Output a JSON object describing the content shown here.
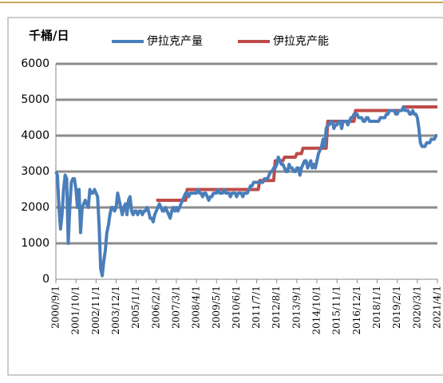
{
  "chart_data": {
    "type": "line",
    "ylabel": "千桶/日",
    "categories": [
      "2000/9/1",
      null,
      null,
      null,
      null,
      null,
      null,
      null,
      null,
      null,
      null,
      null,
      null,
      "2001/10/1",
      null,
      null,
      null,
      null,
      null,
      null,
      null,
      null,
      null,
      null,
      null,
      null,
      "2002/11/1",
      null,
      null,
      null,
      null,
      null,
      null,
      null,
      null,
      null,
      null,
      null,
      null,
      "2003/12/1",
      null,
      null,
      null,
      null,
      null,
      null,
      null,
      null,
      null,
      null,
      null,
      null,
      "2005/1/1",
      null,
      null,
      null,
      null,
      null,
      null,
      null,
      null,
      null,
      null,
      null,
      null,
      "2006/2/1",
      null,
      null,
      null,
      null,
      null,
      null,
      null,
      null,
      null,
      null,
      null,
      null,
      "2007/3/1",
      null,
      null,
      null,
      null,
      null,
      null,
      null,
      null,
      null,
      null,
      null,
      null,
      "2008/4/1",
      null,
      null,
      null,
      null,
      null,
      null,
      null,
      null,
      null,
      null,
      null,
      null,
      "2009/5/1",
      null,
      null,
      null,
      null,
      null,
      null,
      null,
      null,
      null,
      null,
      null,
      null,
      "2010/6/1",
      null,
      null,
      null,
      null,
      null,
      null,
      null,
      null,
      null,
      null,
      null,
      null,
      "2011/7/1",
      null,
      null,
      null,
      null,
      null,
      null,
      null,
      null,
      null,
      null,
      null,
      null,
      "2012/8/1",
      null,
      null,
      null,
      null,
      null,
      null,
      null,
      null,
      null,
      null,
      null,
      null,
      "2013/9/1",
      null,
      null,
      null,
      null,
      null,
      null,
      null,
      null,
      null,
      null,
      null,
      null,
      "2014/10/1",
      null,
      null,
      null,
      null,
      null,
      null,
      null,
      null,
      null,
      null,
      null,
      null,
      "2015/11/1",
      null,
      null,
      null,
      null,
      null,
      null,
      null,
      null,
      null,
      null,
      null,
      null,
      "2016/12/1",
      null,
      null,
      null,
      null,
      null,
      null,
      null,
      null,
      null,
      null,
      null,
      null,
      "2018/1/1",
      null,
      null,
      null,
      null,
      null,
      null,
      null,
      null,
      null,
      null,
      null,
      null,
      "2019/2/1",
      null,
      null,
      null,
      null,
      null,
      null,
      null,
      null,
      null,
      null,
      null,
      null,
      "2020/3/1",
      null,
      null,
      null,
      null,
      null,
      null,
      null,
      null,
      null,
      null,
      null,
      null,
      "2021/4/1"
    ],
    "series": [
      {
        "name": "伊拉克产量",
        "color": "#4a7ebb",
        "values": [
          3000,
          2900,
          2000,
          1400,
          1800,
          2500,
          2900,
          2800,
          1000,
          2000,
          2700,
          2800,
          2800,
          2500,
          2000,
          2500,
          1300,
          2000,
          2100,
          2200,
          2100,
          2000,
          2500,
          2400,
          2400,
          2500,
          2400,
          2300,
          1500,
          300,
          100,
          500,
          800,
          1300,
          1500,
          1800,
          2000,
          2000,
          1900,
          2000,
          2400,
          2200,
          2000,
          1800,
          2000,
          2100,
          1800,
          2200,
          2300,
          1900,
          1800,
          1900,
          1900,
          1800,
          1900,
          1900,
          1800,
          1900,
          1900,
          2000,
          1900,
          1700,
          1700,
          1600,
          1800,
          1900,
          2000,
          2100,
          2000,
          1900,
          1900,
          2000,
          1900,
          1800,
          1700,
          1900,
          2000,
          1900,
          2000,
          1900,
          2000,
          2100,
          2200,
          2300,
          2400,
          2400,
          2300,
          2400,
          2400,
          2400,
          2400,
          2400,
          2500,
          2400,
          2400,
          2300,
          2400,
          2400,
          2300,
          2200,
          2300,
          2300,
          2400,
          2400,
          2400,
          2500,
          2400,
          2400,
          2400,
          2500,
          2400,
          2400,
          2400,
          2300,
          2400,
          2400,
          2400,
          2300,
          2400,
          2400,
          2400,
          2300,
          2400,
          2400,
          2400,
          2500,
          2600,
          2600,
          2700,
          2700,
          2700,
          2700,
          2700,
          2700,
          2700,
          2800,
          2800,
          2800,
          2900,
          3000,
          3000,
          3100,
          3100,
          3200,
          3400,
          3300,
          3200,
          3200,
          3100,
          3000,
          3000,
          3200,
          3100,
          3100,
          3000,
          3000,
          3100,
          3100,
          2900,
          3100,
          3200,
          3300,
          3300,
          3100,
          3200,
          3300,
          3100,
          3200,
          3100,
          3300,
          3500,
          3600,
          3700,
          3900,
          3700,
          4200,
          4300,
          4300,
          4400,
          4400,
          4200,
          4300,
          4300,
          4400,
          4400,
          4200,
          4400,
          4400,
          4400,
          4300,
          4400,
          4500,
          4500,
          4600,
          4600,
          4600,
          4500,
          4500,
          4500,
          4400,
          4400,
          4500,
          4500,
          4400,
          4400,
          4400,
          4400,
          4400,
          4400,
          4400,
          4500,
          4500,
          4500,
          4500,
          4600,
          4600,
          4700,
          4700,
          4700,
          4700,
          4600,
          4600,
          4700,
          4700,
          4700,
          4800,
          4700,
          4700,
          4700,
          4600,
          4600,
          4700,
          4600,
          4600,
          4500,
          4200,
          3800,
          3700,
          3700,
          3700,
          3800,
          3800,
          3800,
          3900,
          3900,
          3900,
          4000,
          4000
        ]
      },
      {
        "name": "伊拉克产能",
        "color": "#be4b48",
        "values": [
          null,
          null,
          null,
          null,
          null,
          null,
          null,
          null,
          null,
          null,
          null,
          null,
          null,
          null,
          null,
          null,
          null,
          null,
          null,
          null,
          null,
          null,
          null,
          null,
          null,
          null,
          null,
          null,
          null,
          null,
          null,
          null,
          null,
          null,
          null,
          null,
          null,
          null,
          null,
          null,
          null,
          null,
          null,
          null,
          null,
          null,
          null,
          null,
          null,
          null,
          null,
          null,
          null,
          null,
          null,
          null,
          null,
          null,
          null,
          null,
          null,
          null,
          null,
          null,
          null,
          2200,
          2200,
          2200,
          2200,
          2200,
          2200,
          2200,
          2200,
          2200,
          2200,
          2200,
          2200,
          2200,
          2200,
          2200,
          2200,
          2200,
          2200,
          2200,
          2200,
          2500,
          2500,
          2500,
          2500,
          2500,
          2500,
          2500,
          2500,
          2500,
          2500,
          2500,
          2500,
          2500,
          2500,
          2500,
          2500,
          2500,
          2500,
          2500,
          2500,
          2500,
          2500,
          2500,
          2500,
          2500,
          2500,
          2500,
          2500,
          2500,
          2500,
          2500,
          2500,
          2500,
          2500,
          2500,
          2500,
          2500,
          2500,
          2500,
          2500,
          2500,
          2500,
          2500,
          2500,
          2500,
          2500,
          2500,
          2750,
          2750,
          2750,
          2750,
          2750,
          2750,
          2750,
          2750,
          2750,
          2750,
          3300,
          3300,
          3300,
          3300,
          3300,
          3300,
          3400,
          3400,
          3400,
          3400,
          3400,
          3400,
          3400,
          3400,
          3500,
          3500,
          3500,
          3500,
          3650,
          3650,
          3650,
          3650,
          3650,
          3650,
          3650,
          3650,
          3650,
          3650,
          3650,
          3650,
          3650,
          3650,
          3650,
          3650,
          4400,
          4400,
          4400,
          4400,
          4400,
          4400,
          4400,
          4400,
          4400,
          4400,
          4400,
          4400,
          4400,
          4400,
          4400,
          4400,
          4400,
          4400,
          4700,
          4700,
          4700,
          4700,
          4700,
          4700,
          4700,
          4700,
          4700,
          4700,
          4700,
          4700,
          4700,
          4700,
          4700,
          4700,
          4700,
          4700,
          4700,
          4700,
          4700,
          4700,
          4700,
          4700,
          4700,
          4700,
          4700,
          4700,
          4700,
          4700,
          4700,
          4800,
          4800,
          4800,
          4800,
          4800,
          4800,
          4800,
          4800,
          4800,
          4800,
          4800,
          4800,
          4800,
          4800,
          4800,
          4800,
          4800,
          4800,
          4800,
          4800,
          4800,
          4800,
          4800
        ]
      }
    ],
    "ylim": [
      0,
      6000
    ],
    "yticks": [
      0,
      1000,
      2000,
      3000,
      4000,
      5000,
      6000
    ],
    "grid": true
  }
}
